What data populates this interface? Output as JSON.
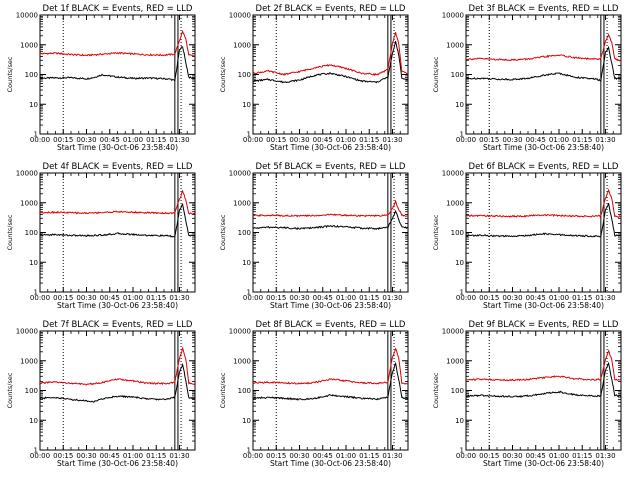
{
  "figure": {
    "background": "#ffffff",
    "axis_color": "#000000",
    "events_color": "#000000",
    "lld_color": "#e00000"
  },
  "chart_data": [
    {
      "type": "line",
      "panel": "det-1f",
      "title": "Det 1f BLACK = Events, RED = LLD",
      "xlabel": "Start Time (30-Oct-06 23:58:40)",
      "ylabel": "Counts/sec",
      "x_tick_labels": [
        "00:00",
        "00:15",
        "00:30",
        "00:45",
        "01:00",
        "01:15",
        "01:30"
      ],
      "y_tick_labels": [
        "1",
        "10",
        "100",
        "1000",
        "10000"
      ],
      "x_unit": "minutes after 00:00",
      "xlim": [
        0,
        100
      ],
      "ylim": [
        1,
        10000
      ],
      "y_scale": "log",
      "dotted_markers": [
        15,
        91
      ],
      "solid_markers": [
        87,
        89
      ],
      "series": [
        {
          "color": "#000000",
          "x": [
            0,
            10,
            20,
            30,
            35,
            40,
            50,
            60,
            70,
            80,
            84,
            87,
            90,
            92,
            94,
            96,
            98,
            100
          ],
          "values": [
            75,
            77,
            78,
            72,
            80,
            98,
            82,
            74,
            76,
            72,
            70,
            62,
            650,
            900,
            260,
            82,
            75,
            75
          ]
        },
        {
          "color": "#e00000",
          "x": [
            0,
            10,
            20,
            30,
            40,
            50,
            60,
            70,
            80,
            84,
            87,
            90,
            92,
            94,
            96,
            98,
            100
          ],
          "values": [
            500,
            520,
            470,
            440,
            480,
            530,
            490,
            460,
            450,
            470,
            480,
            1400,
            2800,
            1600,
            450,
            430,
            420
          ]
        }
      ]
    },
    {
      "type": "line",
      "panel": "det-2f",
      "title": "Det 2f BLACK = Events, RED = LLD",
      "xlabel": "Start Time (30-Oct-06 23:58:40)",
      "ylabel": "Counts/sec",
      "x_tick_labels": [
        "00:00",
        "00:15",
        "00:30",
        "00:45",
        "01:00",
        "01:15",
        "01:30"
      ],
      "y_tick_labels": [
        "1",
        "10",
        "100",
        "1000",
        "10000"
      ],
      "x_unit": "minutes after 00:00",
      "xlim": [
        0,
        100
      ],
      "ylim": [
        1,
        10000
      ],
      "y_scale": "log",
      "dotted_markers": [
        15,
        91
      ],
      "solid_markers": [
        87,
        89
      ],
      "series": [
        {
          "color": "#000000",
          "x": [
            0,
            10,
            20,
            30,
            40,
            50,
            60,
            70,
            80,
            84,
            87,
            90,
            92,
            94,
            96,
            98,
            100
          ],
          "values": [
            60,
            68,
            55,
            65,
            95,
            110,
            85,
            60,
            55,
            70,
            80,
            500,
            1300,
            480,
            75,
            70,
            68
          ]
        },
        {
          "color": "#e00000",
          "x": [
            0,
            10,
            20,
            30,
            40,
            50,
            60,
            70,
            80,
            84,
            87,
            90,
            92,
            94,
            96,
            98,
            100
          ],
          "values": [
            110,
            130,
            100,
            125,
            170,
            210,
            160,
            110,
            100,
            120,
            150,
            1100,
            2600,
            1100,
            130,
            115,
            110
          ]
        }
      ]
    },
    {
      "type": "line",
      "panel": "det-3f",
      "title": "Det 3f BLACK = Events, RED = LLD",
      "xlabel": "Start Time (30-Oct-06 23:58:40)",
      "ylabel": "Counts/sec",
      "x_tick_labels": [
        "00:00",
        "00:15",
        "00:30",
        "00:45",
        "01:00",
        "01:15",
        "01:30"
      ],
      "y_tick_labels": [
        "1",
        "10",
        "100",
        "1000",
        "10000"
      ],
      "x_unit": "minutes after 00:00",
      "xlim": [
        0,
        100
      ],
      "ylim": [
        1,
        10000
      ],
      "y_scale": "log",
      "dotted_markers": [
        15,
        91
      ],
      "solid_markers": [
        87,
        89
      ],
      "series": [
        {
          "color": "#000000",
          "x": [
            0,
            10,
            20,
            30,
            40,
            50,
            60,
            70,
            80,
            84,
            87,
            90,
            92,
            94,
            96,
            98,
            100
          ],
          "values": [
            72,
            75,
            70,
            68,
            74,
            95,
            110,
            82,
            72,
            70,
            62,
            550,
            800,
            240,
            75,
            72,
            72
          ]
        },
        {
          "color": "#e00000",
          "x": [
            0,
            10,
            20,
            30,
            40,
            50,
            60,
            70,
            80,
            84,
            87,
            90,
            92,
            94,
            96,
            98,
            100
          ],
          "values": [
            330,
            340,
            320,
            310,
            330,
            390,
            450,
            370,
            330,
            330,
            340,
            1300,
            2200,
            1200,
            330,
            310,
            300
          ]
        }
      ]
    },
    {
      "type": "line",
      "panel": "det-4f",
      "title": "Det 4f BLACK = Events, RED = LLD",
      "xlabel": "Start Time (30-Oct-06 23:58:40)",
      "ylabel": "Counts/sec",
      "x_tick_labels": [
        "00:00",
        "00:15",
        "00:30",
        "00:45",
        "01:00",
        "01:15",
        "01:30"
      ],
      "y_tick_labels": [
        "1",
        "10",
        "100",
        "1000",
        "10000"
      ],
      "x_unit": "minutes after 00:00",
      "xlim": [
        0,
        100
      ],
      "ylim": [
        1,
        10000
      ],
      "y_scale": "log",
      "dotted_markers": [
        15,
        91
      ],
      "solid_markers": [
        87,
        89
      ],
      "series": [
        {
          "color": "#000000",
          "x": [
            0,
            10,
            20,
            30,
            40,
            50,
            60,
            70,
            80,
            84,
            87,
            90,
            92,
            94,
            96,
            98,
            100
          ],
          "values": [
            82,
            85,
            80,
            78,
            82,
            92,
            86,
            80,
            78,
            76,
            70,
            560,
            850,
            260,
            80,
            78,
            78
          ]
        },
        {
          "color": "#e00000",
          "x": [
            0,
            10,
            20,
            30,
            40,
            50,
            60,
            70,
            80,
            84,
            87,
            90,
            92,
            94,
            96,
            98,
            100
          ],
          "values": [
            470,
            480,
            460,
            450,
            470,
            500,
            480,
            460,
            450,
            450,
            460,
            1300,
            2400,
            1300,
            440,
            430,
            420
          ]
        }
      ]
    },
    {
      "type": "line",
      "panel": "det-5f",
      "title": "Det 5f BLACK = Events, RED = LLD",
      "xlabel": "Start Time (30-Oct-06 23:58:40)",
      "ylabel": "Counts/sec",
      "x_tick_labels": [
        "00:00",
        "00:15",
        "00:30",
        "00:45",
        "01:00",
        "01:15",
        "01:30"
      ],
      "y_tick_labels": [
        "1",
        "10",
        "100",
        "1000",
        "10000"
      ],
      "x_unit": "minutes after 00:00",
      "xlim": [
        0,
        100
      ],
      "ylim": [
        1,
        10000
      ],
      "y_scale": "log",
      "dotted_markers": [
        15,
        91
      ],
      "solid_markers": [
        87,
        89
      ],
      "series": [
        {
          "color": "#000000",
          "x": [
            0,
            10,
            20,
            30,
            40,
            50,
            60,
            70,
            80,
            84,
            87,
            90,
            92,
            94,
            96,
            98,
            100
          ],
          "values": [
            140,
            150,
            145,
            135,
            145,
            165,
            155,
            140,
            135,
            140,
            150,
            300,
            520,
            280,
            150,
            145,
            145
          ]
        },
        {
          "color": "#e00000",
          "x": [
            0,
            10,
            20,
            30,
            40,
            50,
            60,
            70,
            80,
            84,
            87,
            90,
            92,
            94,
            96,
            98,
            100
          ],
          "values": [
            370,
            380,
            370,
            360,
            370,
            400,
            380,
            365,
            360,
            370,
            380,
            650,
            1100,
            600,
            380,
            370,
            365
          ]
        }
      ]
    },
    {
      "type": "line",
      "panel": "det-6f",
      "title": "Det 6f BLACK = Events, RED = LLD",
      "xlabel": "Start Time (30-Oct-06 23:58:40)",
      "ylabel": "Counts/sec",
      "x_tick_labels": [
        "00:00",
        "00:15",
        "00:30",
        "00:45",
        "01:00",
        "01:15",
        "01:30"
      ],
      "y_tick_labels": [
        "1",
        "10",
        "100",
        "1000",
        "10000"
      ],
      "x_unit": "minutes after 00:00",
      "xlim": [
        0,
        100
      ],
      "ylim": [
        1,
        10000
      ],
      "y_scale": "log",
      "dotted_markers": [
        15,
        91
      ],
      "solid_markers": [
        87,
        89
      ],
      "series": [
        {
          "color": "#000000",
          "x": [
            0,
            10,
            20,
            30,
            40,
            50,
            60,
            70,
            80,
            84,
            87,
            90,
            92,
            94,
            96,
            98,
            100
          ],
          "values": [
            78,
            80,
            76,
            74,
            80,
            90,
            84,
            78,
            76,
            76,
            74,
            560,
            950,
            280,
            80,
            78,
            78
          ]
        },
        {
          "color": "#e00000",
          "x": [
            0,
            10,
            20,
            30,
            40,
            50,
            60,
            70,
            80,
            84,
            87,
            90,
            92,
            94,
            96,
            98,
            100
          ],
          "values": [
            360,
            370,
            355,
            350,
            360,
            390,
            370,
            355,
            350,
            355,
            360,
            1400,
            2600,
            1400,
            360,
            345,
            340
          ]
        }
      ]
    },
    {
      "type": "line",
      "panel": "det-7f",
      "title": "Det 7f BLACK = Events, RED = LLD",
      "xlabel": "Start Time (30-Oct-06 23:58:40)",
      "ylabel": "Counts/sec",
      "x_tick_labels": [
        "00:00",
        "00:15",
        "00:30",
        "00:45",
        "01:00",
        "01:15",
        "01:30"
      ],
      "y_tick_labels": [
        "1",
        "10",
        "100",
        "1000",
        "10000"
      ],
      "x_unit": "minutes after 00:00",
      "xlim": [
        0,
        100
      ],
      "ylim": [
        1,
        10000
      ],
      "y_scale": "log",
      "dotted_markers": [
        15,
        91
      ],
      "solid_markers": [
        87,
        89
      ],
      "series": [
        {
          "color": "#000000",
          "x": [
            0,
            10,
            20,
            30,
            35,
            40,
            50,
            60,
            70,
            80,
            84,
            87,
            90,
            92,
            94,
            96,
            98,
            100
          ],
          "values": [
            55,
            58,
            50,
            45,
            42,
            52,
            65,
            60,
            52,
            50,
            55,
            60,
            420,
            750,
            230,
            58,
            55,
            55
          ]
        },
        {
          "color": "#e00000",
          "x": [
            0,
            10,
            20,
            30,
            40,
            50,
            60,
            70,
            80,
            84,
            87,
            90,
            92,
            94,
            96,
            98,
            100
          ],
          "values": [
            180,
            190,
            175,
            160,
            185,
            240,
            210,
            175,
            170,
            180,
            190,
            1200,
            2500,
            1200,
            180,
            170,
            165
          ]
        }
      ]
    },
    {
      "type": "line",
      "panel": "det-8f",
      "title": "Det 8f BLACK = Events, RED = LLD",
      "xlabel": "Start Time (30-Oct-06 23:58:40)",
      "ylabel": "Counts/sec",
      "x_tick_labels": [
        "00:00",
        "00:15",
        "00:30",
        "00:45",
        "01:00",
        "01:15",
        "01:30"
      ],
      "y_tick_labels": [
        "1",
        "10",
        "100",
        "1000",
        "10000"
      ],
      "x_unit": "minutes after 00:00",
      "xlim": [
        0,
        100
      ],
      "ylim": [
        1,
        10000
      ],
      "y_scale": "log",
      "dotted_markers": [
        15,
        91
      ],
      "solid_markers": [
        87,
        89
      ],
      "series": [
        {
          "color": "#000000",
          "x": [
            0,
            10,
            20,
            30,
            40,
            50,
            60,
            70,
            80,
            84,
            87,
            90,
            92,
            94,
            96,
            98,
            100
          ],
          "values": [
            55,
            58,
            55,
            50,
            55,
            70,
            62,
            54,
            52,
            55,
            60,
            420,
            780,
            240,
            58,
            55,
            55
          ]
        },
        {
          "color": "#e00000",
          "x": [
            0,
            10,
            20,
            30,
            40,
            50,
            60,
            70,
            80,
            84,
            87,
            90,
            92,
            94,
            96,
            98,
            100
          ],
          "values": [
            180,
            190,
            180,
            170,
            185,
            240,
            210,
            180,
            175,
            180,
            190,
            1300,
            2600,
            1300,
            180,
            170,
            170
          ]
        }
      ]
    },
    {
      "type": "line",
      "panel": "det-9f",
      "title": "Det 9f BLACK = Events, RED = LLD",
      "xlabel": "Start Time (30-Oct-06 23:58:40)",
      "ylabel": "Counts/sec",
      "x_tick_labels": [
        "00:00",
        "00:15",
        "00:30",
        "00:45",
        "01:00",
        "01:15",
        "01:30"
      ],
      "y_tick_labels": [
        "1",
        "10",
        "100",
        "1000",
        "10000"
      ],
      "x_unit": "minutes after 00:00",
      "xlim": [
        0,
        100
      ],
      "ylim": [
        1,
        10000
      ],
      "y_scale": "log",
      "dotted_markers": [
        15,
        91
      ],
      "solid_markers": [
        87,
        89
      ],
      "series": [
        {
          "color": "#000000",
          "x": [
            0,
            10,
            20,
            30,
            40,
            50,
            60,
            70,
            80,
            84,
            87,
            90,
            92,
            94,
            96,
            98,
            100
          ],
          "values": [
            65,
            68,
            64,
            62,
            66,
            78,
            90,
            72,
            66,
            66,
            64,
            500,
            780,
            240,
            70,
            66,
            66
          ]
        },
        {
          "color": "#e00000",
          "x": [
            0,
            10,
            20,
            30,
            40,
            50,
            60,
            70,
            80,
            84,
            87,
            90,
            92,
            94,
            96,
            98,
            100
          ],
          "values": [
            230,
            240,
            230,
            225,
            235,
            270,
            300,
            250,
            230,
            235,
            240,
            1100,
            2200,
            1100,
            240,
            225,
            220
          ]
        }
      ]
    }
  ]
}
